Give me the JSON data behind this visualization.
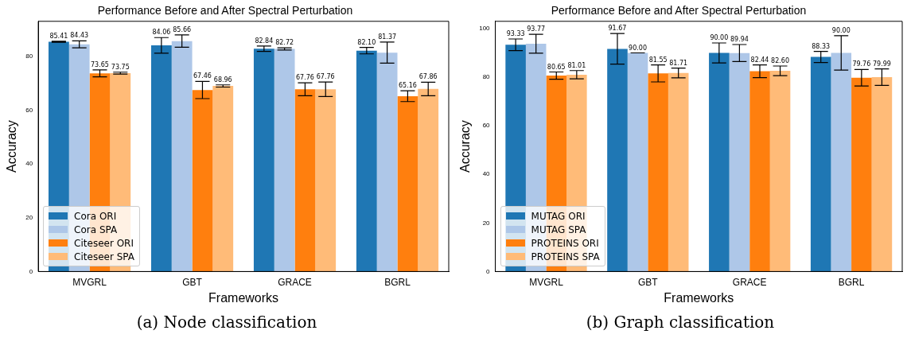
{
  "chart_data": [
    {
      "type": "bar",
      "title": "Performance Before and After Spectral Perturbation",
      "xlabel": "Frameworks",
      "ylabel": "Accuracy",
      "annotations": [
        "(a) Node classification"
      ],
      "categories": [
        "MVGRL",
        "GBT",
        "GRACE",
        "BGRL"
      ],
      "series": [
        {
          "name": "Cora ORI",
          "color": "#1f77b4",
          "values": [
            85.41,
            84.06,
            82.84,
            82.1
          ],
          "errors": [
            0.2,
            2.9,
            1.0,
            1.2
          ],
          "value_labels": [
            "85.41",
            "84.06",
            "82.84",
            "82.10"
          ]
        },
        {
          "name": "Cora SPA",
          "color": "#aec7e8",
          "values": [
            84.43,
            85.66,
            82.72,
            81.37
          ],
          "errors": [
            1.3,
            2.3,
            0.4,
            3.9
          ],
          "value_labels": [
            "84.43",
            "85.66",
            "82.72",
            "81.37"
          ]
        },
        {
          "name": "Citeseer ORI",
          "color": "#ff7f0e",
          "values": [
            73.65,
            67.46,
            67.76,
            65.16
          ],
          "errors": [
            1.3,
            3.2,
            2.4,
            2.0
          ],
          "value_labels": [
            "73.65",
            "67.46",
            "67.76",
            "65.16"
          ]
        },
        {
          "name": "Citeseer SPA",
          "color": "#ffbb78",
          "values": [
            73.75,
            68.96,
            67.76,
            67.86
          ],
          "errors": [
            0.35,
            0.4,
            2.7,
            2.5
          ],
          "value_labels": [
            "73.75",
            "68.96",
            "67.76",
            "67.86"
          ]
        }
      ],
      "ylim": [
        0,
        93
      ],
      "yticks": [
        0,
        20,
        40,
        60,
        80
      ],
      "grid": false,
      "legend": "bottom left"
    },
    {
      "type": "bar",
      "title": "Performance Before and After Spectral Perturbation",
      "xlabel": "Frameworks",
      "ylabel": "Accuracy",
      "annotations": [
        "(b) Graph classification"
      ],
      "categories": [
        "MVGRL",
        "GBT",
        "GRACE",
        "BGRL"
      ],
      "series": [
        {
          "name": "MUTAG ORI",
          "color": "#1f77b4",
          "values": [
            93.33,
            91.67,
            90.0,
            88.33
          ],
          "errors": [
            2.4,
            6.3,
            4.1,
            2.3
          ],
          "value_labels": [
            "93.33",
            "91.67",
            "90.00",
            "88.33"
          ]
        },
        {
          "name": "MUTAG SPA",
          "color": "#aec7e8",
          "values": [
            93.77,
            90.0,
            89.94,
            90.0
          ],
          "errors": [
            3.9,
            0,
            3.5,
            7.1
          ],
          "value_labels": [
            "93.77",
            "90.00",
            "89.94",
            "90.00"
          ]
        },
        {
          "name": "PROTEINS ORI",
          "color": "#ff7f0e",
          "values": [
            80.65,
            81.55,
            82.44,
            79.76
          ],
          "errors": [
            1.5,
            3.5,
            2.6,
            3.4
          ],
          "value_labels": [
            "80.65",
            "81.55",
            "82.44",
            "79.76"
          ]
        },
        {
          "name": "PROTEINS SPA",
          "color": "#ffbb78",
          "values": [
            81.01,
            81.71,
            82.6,
            79.99
          ],
          "errors": [
            1.7,
            2.0,
            2.0,
            3.4
          ],
          "value_labels": [
            "81.01",
            "81.71",
            "82.60",
            "79.99"
          ]
        }
      ],
      "ylim": [
        0,
        103
      ],
      "yticks": [
        0,
        20,
        40,
        60,
        80,
        100
      ],
      "grid": false,
      "legend": "bottom left"
    }
  ]
}
